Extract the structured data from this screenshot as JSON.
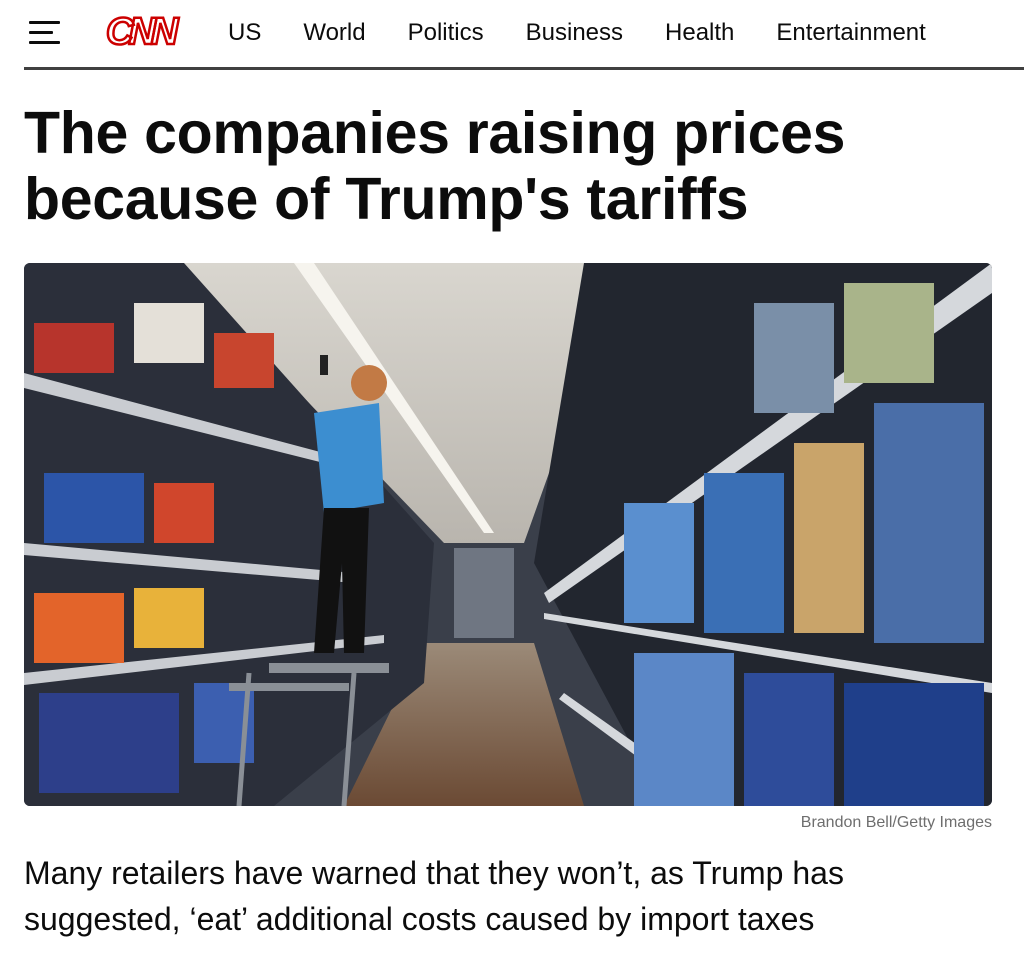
{
  "header": {
    "logo": "CNN",
    "nav": [
      "US",
      "World",
      "Politics",
      "Business",
      "Health",
      "Entertainment"
    ]
  },
  "article": {
    "headline": "The companies raising prices because of Trump's tariffs",
    "image_credit": "Brandon Bell/Getty Images",
    "subheadline": "Many retailers have warned that they won’t, as Trump has suggested, ‘eat’ additional costs caused by import taxes"
  }
}
